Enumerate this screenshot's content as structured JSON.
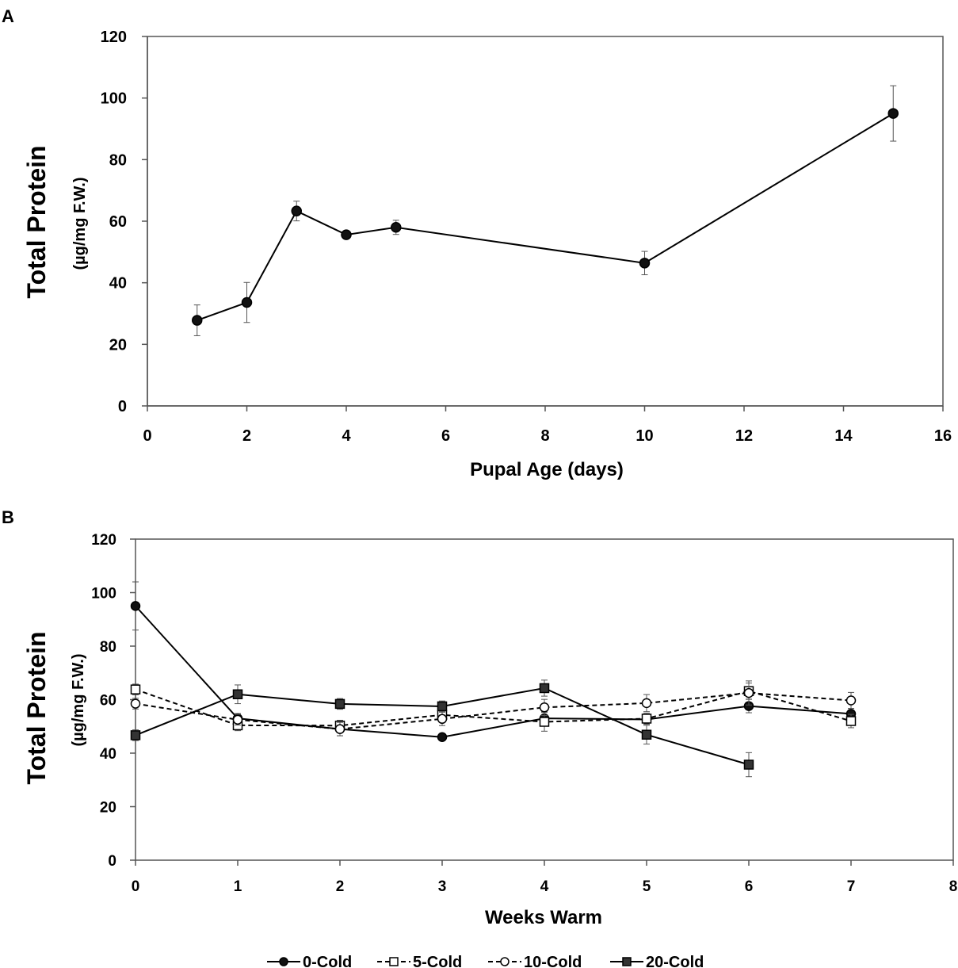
{
  "chart_data": [
    {
      "panel": "A",
      "type": "line",
      "xlabel": "Pupal Age (days)",
      "ylabel": "Total Protein",
      "ylabel_sub": "(µg/mg F.W.)",
      "xlim": [
        0,
        16
      ],
      "ylim": [
        0,
        120
      ],
      "xticks": [
        0,
        2,
        4,
        6,
        8,
        10,
        12,
        14,
        16
      ],
      "yticks": [
        0,
        20,
        40,
        60,
        80,
        100,
        120
      ],
      "series": [
        {
          "name": "Total Protein",
          "marker": "filled-circle",
          "dashed": false,
          "x": [
            1,
            2,
            3,
            4,
            5,
            10,
            15
          ],
          "values": [
            27.8,
            33.6,
            63.3,
            55.6,
            58.0,
            46.4,
            95.0
          ],
          "errors": [
            5.0,
            6.5,
            3.2,
            1.2,
            2.3,
            3.8,
            9.0
          ]
        }
      ]
    },
    {
      "panel": "B",
      "type": "line",
      "xlabel": "Weeks Warm",
      "ylabel": "Total Protein",
      "ylabel_sub": "(µg/mg F.W.)",
      "xlim": [
        0,
        8
      ],
      "ylim": [
        0,
        120
      ],
      "xticks": [
        0,
        1,
        2,
        3,
        4,
        5,
        6,
        7,
        8
      ],
      "yticks": [
        0,
        20,
        40,
        60,
        80,
        100,
        120
      ],
      "legend": "bottom",
      "series": [
        {
          "name": "0-Cold",
          "marker": "filled-circle",
          "dashed": false,
          "x": [
            0,
            1,
            2,
            3,
            4,
            5,
            6,
            7
          ],
          "values": [
            95.0,
            53.0,
            49.0,
            46.0,
            53.0,
            52.6,
            57.6,
            54.7
          ],
          "errors": [
            9.0,
            1.8,
            2.5,
            1.0,
            2.5,
            1.8,
            2.5,
            2.0
          ]
        },
        {
          "name": "5-Cold",
          "marker": "open-square",
          "dashed": true,
          "x": [
            0,
            1,
            2,
            3,
            4,
            5,
            6,
            7
          ],
          "values": [
            63.8,
            50.4,
            50.3,
            54.3,
            51.7,
            52.9,
            63.2,
            52.0
          ],
          "errors": [
            2.0,
            2.0,
            2.0,
            2.0,
            3.5,
            2.0,
            3.0,
            2.5
          ]
        },
        {
          "name": "10-Cold",
          "marker": "open-circle",
          "dashed": true,
          "x": [
            0,
            1,
            2,
            3,
            4,
            5,
            6,
            7
          ],
          "values": [
            58.5,
            52.5,
            49.0,
            52.8,
            57.1,
            58.7,
            62.5,
            59.7
          ],
          "errors": [
            2.0,
            2.0,
            2.5,
            2.5,
            3.0,
            3.2,
            4.5,
            3.0
          ]
        },
        {
          "name": "20-Cold",
          "marker": "filled-square",
          "dashed": false,
          "x": [
            0,
            1,
            2,
            3,
            4,
            5,
            6
          ],
          "values": [
            46.7,
            62.0,
            58.4,
            57.5,
            64.3,
            46.9,
            35.7
          ],
          "errors": [
            2.0,
            3.5,
            2.0,
            2.0,
            3.0,
            3.5,
            4.5
          ]
        }
      ]
    }
  ]
}
